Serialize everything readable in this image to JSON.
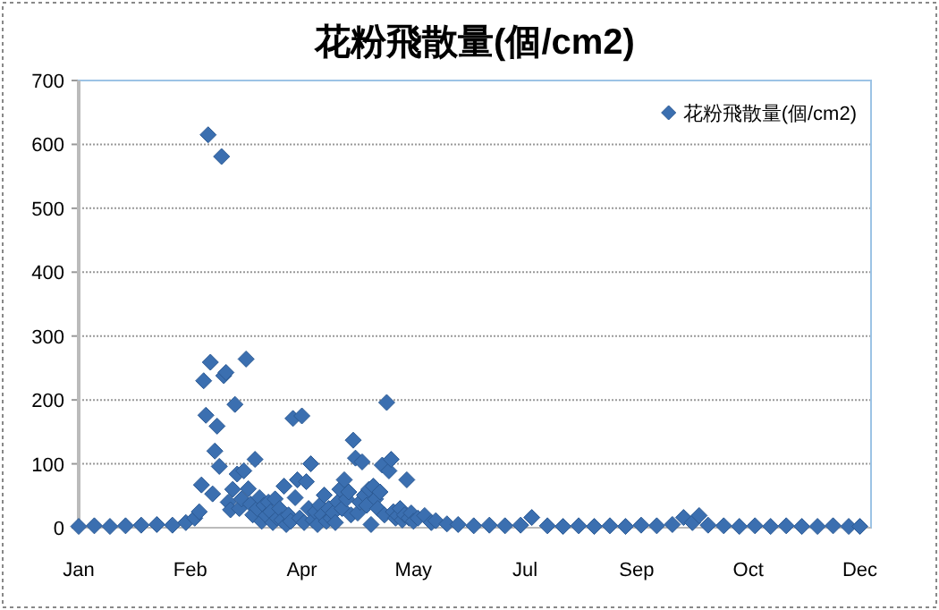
{
  "chart_data": {
    "type": "scatter",
    "title": "花粉飛散量(個/cm2)",
    "x": [
      "--01-01",
      "--01-08",
      "--01-15",
      "--01-22",
      "--01-29",
      "--02-05",
      "--02-12",
      "--02-18",
      "--02-22",
      "--02-24",
      "--02-25",
      "--02-26",
      "--02-27",
      "--02-28",
      "--03-01",
      "--03-02",
      "--03-03",
      "--03-04",
      "--03-05",
      "--03-06",
      "--03-07",
      "--03-08",
      "--03-09",
      "--03-10",
      "--03-11",
      "--03-12",
      "--03-13",
      "--03-14",
      "--03-15",
      "--03-16",
      "--03-17",
      "--03-18",
      "--03-19",
      "--03-20",
      "--03-21",
      "--03-22",
      "--03-23",
      "--03-24",
      "--03-25",
      "--03-26",
      "--03-27",
      "--03-28",
      "--03-29",
      "--03-30",
      "--03-31",
      "--04-01",
      "--04-02",
      "--04-03",
      "--04-04",
      "--04-05",
      "--04-06",
      "--04-07",
      "--04-08",
      "--04-09",
      "--04-10",
      "--04-11",
      "--04-12",
      "--04-13",
      "--04-14",
      "--04-15",
      "--04-16",
      "--04-17",
      "--04-18",
      "--04-19",
      "--04-20",
      "--04-21",
      "--04-22",
      "--04-23",
      "--04-24",
      "--04-25",
      "--04-26",
      "--04-27",
      "--04-28",
      "--04-29",
      "--04-30",
      "--05-01",
      "--05-02",
      "--05-03",
      "--05-04",
      "--05-05",
      "--05-06",
      "--05-07",
      "--05-08",
      "--05-09",
      "--05-10",
      "--05-11",
      "--05-12",
      "--05-13",
      "--05-14",
      "--05-15",
      "--05-16",
      "--05-17",
      "--05-18",
      "--05-19",
      "--05-20",
      "--05-21",
      "--05-22",
      "--05-23",
      "--05-24",
      "--05-25",
      "--05-26",
      "--05-27",
      "--05-28",
      "--05-29",
      "--05-30",
      "--05-31",
      "--06-02",
      "--06-05",
      "--06-08",
      "--06-10",
      "--06-15",
      "--06-20",
      "--06-27",
      "--07-04",
      "--07-11",
      "--07-18",
      "--07-23",
      "--07-30",
      "--08-06",
      "--08-13",
      "--08-20",
      "--08-27",
      "--09-03",
      "--09-10",
      "--09-17",
      "--09-24",
      "--09-29",
      "--10-03",
      "--10-06",
      "--10-10",
      "--10-17",
      "--10-24",
      "--10-31",
      "--11-07",
      "--11-14",
      "--11-21",
      "--11-28",
      "--12-05",
      "--12-12",
      "--12-17"
    ],
    "series": [
      {
        "name": "花粉飛散量(個/cm2)",
        "color": "#3b6fb0",
        "values": [
          2,
          3,
          2,
          3,
          4,
          5,
          4,
          8,
          15,
          25,
          67,
          230,
          176,
          615,
          259,
          53,
          120,
          159,
          96,
          581,
          238,
          243,
          40,
          28,
          60,
          193,
          84,
          30,
          45,
          89,
          264,
          61,
          37,
          20,
          107,
          30,
          47,
          10,
          35,
          19,
          40,
          25,
          8,
          45,
          15,
          30,
          12,
          65,
          5,
          20,
          10,
          171,
          47,
          75,
          15,
          175,
          8,
          72,
          30,
          100,
          12,
          25,
          5,
          35,
          20,
          51,
          10,
          30,
          15,
          23,
          8,
          40,
          60,
          30,
          75,
          45,
          56,
          20,
          137,
          109,
          23,
          40,
          103,
          51,
          35,
          60,
          5,
          65,
          45,
          30,
          56,
          98,
          20,
          196,
          89,
          107,
          25,
          15,
          19,
          30,
          12,
          20,
          75,
          15,
          23,
          10,
          15,
          19,
          8,
          11,
          6,
          5,
          3,
          4,
          3,
          4,
          16,
          3,
          2,
          3,
          2,
          3,
          2,
          4,
          3,
          5,
          16,
          8,
          19,
          4,
          3,
          2,
          3,
          2,
          3,
          2,
          2,
          3,
          2,
          2
        ]
      }
    ],
    "xlim": [
      "--01-01",
      "--12-22"
    ],
    "xticks": [
      {
        "value": "--01-01",
        "label": "Jan"
      },
      {
        "value": "--02-20",
        "label": "Feb"
      },
      {
        "value": "--04-11",
        "label": "Apr"
      },
      {
        "value": "--05-31",
        "label": "May"
      },
      {
        "value": "--07-20",
        "label": "Jul"
      },
      {
        "value": "--09-08",
        "label": "Sep"
      },
      {
        "value": "--10-28",
        "label": "Oct"
      },
      {
        "value": "--12-17",
        "label": "Dec"
      }
    ],
    "ylim": [
      0,
      700
    ],
    "yticks": [
      0,
      100,
      200,
      300,
      400,
      500,
      600,
      700
    ],
    "grid": "y",
    "legend": "top right",
    "marker": "diamond"
  }
}
